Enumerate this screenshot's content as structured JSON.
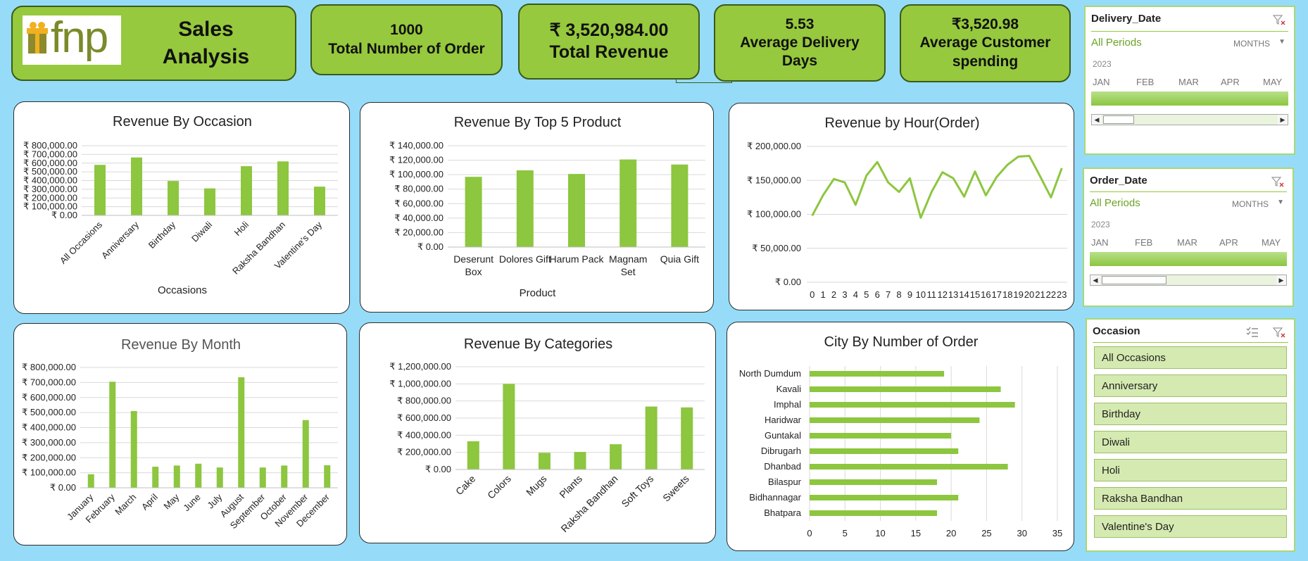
{
  "header": {
    "logo_text": "fnp",
    "title_line1": "Sales",
    "title_line2": "Analysis"
  },
  "kpis": {
    "orders_value": "1000",
    "orders_label": "Total Number of Order",
    "revenue_value": "₹ 3,520,984.00",
    "revenue_label": "Total Revenue",
    "delivery_value": "5.53",
    "delivery_label1": "Average Delivery",
    "delivery_label2": "Days",
    "spending_value": "₹3,520.98",
    "spending_label1": "Average Customer",
    "spending_label2": "spending"
  },
  "slicers": {
    "delivery": {
      "title": "Delivery_Date",
      "all_periods": "All Periods",
      "granularity": "MONTHS",
      "year": "2023",
      "months": [
        "JAN",
        "FEB",
        "MAR",
        "APR",
        "MAY"
      ]
    },
    "order": {
      "title": "Order_Date",
      "all_periods": "All Periods",
      "granularity": "MONTHS",
      "year": "2023",
      "months": [
        "JAN",
        "FEB",
        "MAR",
        "APR",
        "MAY"
      ]
    },
    "occasion": {
      "title": "Occasion",
      "items": [
        "All Occasions",
        "Anniversary",
        "Birthday",
        "Diwali",
        "Holi",
        "Raksha Bandhan",
        "Valentine's Day"
      ]
    }
  },
  "colors": {
    "accent": "#96C93D",
    "background": "#96DCF8",
    "bar": "#8DC63F"
  },
  "chart_data": [
    {
      "id": "occasion",
      "type": "bar",
      "title": "Revenue By Occasion",
      "xlabel": "Occasions",
      "ylabel": "",
      "categories": [
        "All Occasions",
        "Anniversary",
        "Birthday",
        "Diwali",
        "Holi",
        "Raksha Bandhan",
        "Valentine's Day"
      ],
      "values": [
        580000,
        665000,
        395000,
        310000,
        565000,
        620000,
        330000
      ],
      "ylim": [
        0,
        800000
      ],
      "yticks": [
        0,
        100000,
        200000,
        300000,
        400000,
        500000,
        600000,
        700000,
        800000
      ],
      "grid": true
    },
    {
      "id": "product",
      "type": "bar",
      "title": "Revenue By Top 5 Product",
      "xlabel": "Product",
      "ylabel": "",
      "categories": [
        "Deserunt Box",
        "Dolores Gift",
        "Harum Pack",
        "Magnam Set",
        "Quia Gift"
      ],
      "values": [
        97000,
        106000,
        101000,
        121000,
        114000
      ],
      "ylim": [
        0,
        140000
      ],
      "yticks": [
        0,
        20000,
        40000,
        60000,
        80000,
        100000,
        120000,
        140000
      ],
      "grid": true
    },
    {
      "id": "hour",
      "type": "line",
      "title": "Revenue by Hour(Order)",
      "xlabel": "",
      "ylabel": "",
      "x": [
        0,
        1,
        2,
        3,
        4,
        5,
        6,
        7,
        8,
        9,
        10,
        11,
        12,
        13,
        14,
        15,
        16,
        17,
        18,
        19,
        20,
        21,
        22,
        23
      ],
      "values": [
        98000,
        128000,
        152000,
        147000,
        114000,
        157000,
        177000,
        147000,
        133000,
        153000,
        95000,
        133000,
        162000,
        153000,
        126000,
        163000,
        128000,
        155000,
        173000,
        185000,
        186000,
        156000,
        125000,
        168000
      ],
      "ylim": [
        0,
        200000
      ],
      "yticks": [
        0,
        50000,
        100000,
        150000,
        200000
      ],
      "grid": true
    },
    {
      "id": "month",
      "type": "bar",
      "title": "Revenue By Month",
      "xlabel": "",
      "ylabel": "",
      "categories": [
        "January",
        "February",
        "March",
        "April",
        "May",
        "June",
        "July",
        "August",
        "September",
        "October",
        "November",
        "December"
      ],
      "values": [
        90000,
        705000,
        510000,
        140000,
        148000,
        160000,
        135000,
        735000,
        135000,
        148000,
        450000,
        150000
      ],
      "ylim": [
        0,
        800000
      ],
      "yticks": [
        0,
        100000,
        200000,
        300000,
        400000,
        500000,
        600000,
        700000,
        800000
      ],
      "grid": true
    },
    {
      "id": "categories",
      "type": "bar",
      "title": "Revenue By Categories",
      "xlabel": "",
      "ylabel": "",
      "categories": [
        "Cake",
        "Colors",
        "Mugs",
        "Plants",
        "Raksha Bandhan",
        "Soft Toys",
        "Sweets"
      ],
      "values": [
        330000,
        1000000,
        195000,
        205000,
        295000,
        735000,
        725000
      ],
      "ylim": [
        0,
        1200000
      ],
      "yticks": [
        0,
        200000,
        400000,
        600000,
        800000,
        1000000,
        1200000
      ],
      "grid": true
    },
    {
      "id": "city",
      "type": "bar",
      "orientation": "horizontal",
      "title": "City By Number of Order",
      "xlabel": "",
      "ylabel": "",
      "categories": [
        "North Dumdum",
        "Kavali",
        "Imphal",
        "Haridwar",
        "Guntakal",
        "Dibrugarh",
        "Dhanbad",
        "Bilaspur",
        "Bidhannagar",
        "Bhatpara"
      ],
      "values": [
        19,
        27,
        29,
        24,
        20,
        21,
        28,
        18,
        21,
        18
      ],
      "xlim": [
        0,
        35
      ],
      "xticks": [
        0,
        5,
        10,
        15,
        20,
        25,
        30,
        35
      ],
      "grid": true
    }
  ]
}
